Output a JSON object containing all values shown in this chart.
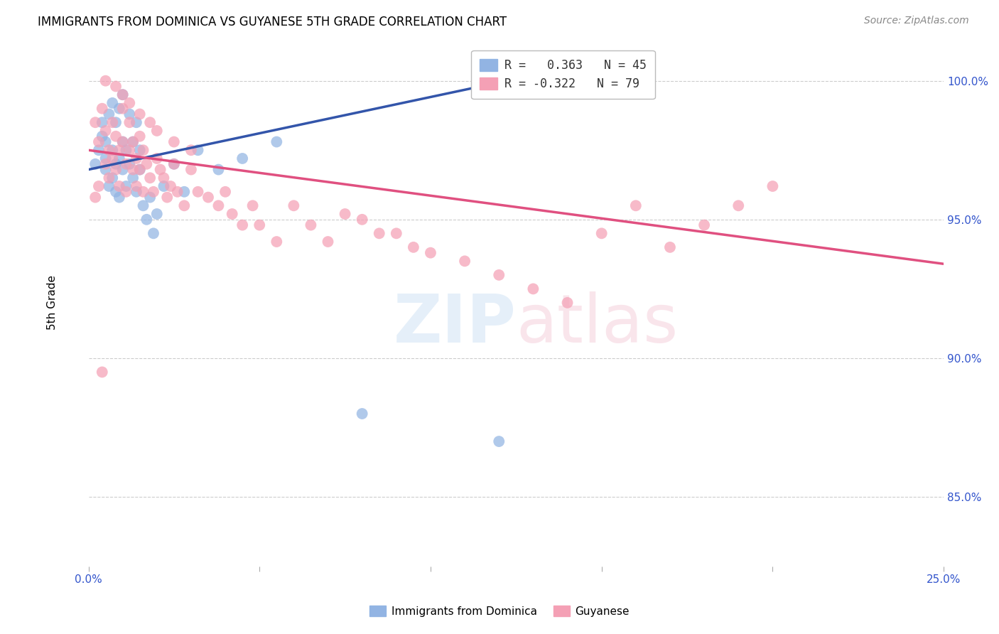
{
  "title": "IMMIGRANTS FROM DOMINICA VS GUYANESE 5TH GRADE CORRELATION CHART",
  "source": "Source: ZipAtlas.com",
  "ylabel": "5th Grade",
  "ytick_labels": [
    "85.0%",
    "90.0%",
    "95.0%",
    "100.0%"
  ],
  "ytick_values": [
    0.85,
    0.9,
    0.95,
    1.0
  ],
  "xlim": [
    0.0,
    0.25
  ],
  "ylim": [
    0.825,
    1.015
  ],
  "blue_color": "#92b4e3",
  "pink_color": "#f4a0b5",
  "blue_line_color": "#3355aa",
  "pink_line_color": "#e05080",
  "grid_color": "#cccccc",
  "blue_line_x0": 0.0,
  "blue_line_y0": 0.968,
  "blue_line_x1": 0.13,
  "blue_line_y1": 1.002,
  "pink_line_x0": 0.0,
  "pink_line_y0": 0.975,
  "pink_line_x1": 0.25,
  "pink_line_y1": 0.934,
  "blue_scatter_x": [
    0.002,
    0.003,
    0.004,
    0.004,
    0.005,
    0.005,
    0.005,
    0.006,
    0.006,
    0.007,
    0.007,
    0.007,
    0.008,
    0.008,
    0.008,
    0.009,
    0.009,
    0.009,
    0.01,
    0.01,
    0.01,
    0.011,
    0.011,
    0.012,
    0.012,
    0.013,
    0.013,
    0.014,
    0.014,
    0.015,
    0.015,
    0.016,
    0.017,
    0.018,
    0.019,
    0.02,
    0.022,
    0.025,
    0.028,
    0.032,
    0.038,
    0.045,
    0.055,
    0.08,
    0.12
  ],
  "blue_scatter_y": [
    0.97,
    0.975,
    0.98,
    0.985,
    0.968,
    0.972,
    0.978,
    0.962,
    0.988,
    0.965,
    0.975,
    0.992,
    0.96,
    0.97,
    0.985,
    0.958,
    0.972,
    0.99,
    0.968,
    0.978,
    0.995,
    0.962,
    0.975,
    0.97,
    0.988,
    0.965,
    0.978,
    0.96,
    0.985,
    0.968,
    0.975,
    0.955,
    0.95,
    0.958,
    0.945,
    0.952,
    0.962,
    0.97,
    0.96,
    0.975,
    0.968,
    0.972,
    0.978,
    0.88,
    0.87
  ],
  "pink_scatter_x": [
    0.002,
    0.003,
    0.004,
    0.005,
    0.005,
    0.006,
    0.006,
    0.007,
    0.007,
    0.008,
    0.008,
    0.009,
    0.009,
    0.01,
    0.01,
    0.011,
    0.011,
    0.012,
    0.012,
    0.013,
    0.013,
    0.014,
    0.014,
    0.015,
    0.015,
    0.016,
    0.016,
    0.017,
    0.018,
    0.019,
    0.02,
    0.021,
    0.022,
    0.023,
    0.024,
    0.025,
    0.026,
    0.028,
    0.03,
    0.032,
    0.035,
    0.038,
    0.04,
    0.042,
    0.045,
    0.048,
    0.05,
    0.055,
    0.06,
    0.065,
    0.07,
    0.075,
    0.08,
    0.085,
    0.09,
    0.095,
    0.1,
    0.11,
    0.12,
    0.13,
    0.14,
    0.15,
    0.16,
    0.17,
    0.18,
    0.19,
    0.2,
    0.005,
    0.008,
    0.01,
    0.012,
    0.015,
    0.018,
    0.02,
    0.025,
    0.03,
    0.002,
    0.003,
    0.004
  ],
  "pink_scatter_y": [
    0.985,
    0.978,
    0.99,
    0.982,
    0.97,
    0.975,
    0.965,
    0.985,
    0.972,
    0.98,
    0.968,
    0.975,
    0.962,
    0.978,
    0.99,
    0.97,
    0.96,
    0.975,
    0.985,
    0.968,
    0.978,
    0.962,
    0.972,
    0.968,
    0.98,
    0.96,
    0.975,
    0.97,
    0.965,
    0.96,
    0.972,
    0.968,
    0.965,
    0.958,
    0.962,
    0.97,
    0.96,
    0.955,
    0.968,
    0.96,
    0.958,
    0.955,
    0.96,
    0.952,
    0.948,
    0.955,
    0.948,
    0.942,
    0.955,
    0.948,
    0.942,
    0.952,
    0.95,
    0.945,
    0.945,
    0.94,
    0.938,
    0.935,
    0.93,
    0.925,
    0.92,
    0.945,
    0.955,
    0.94,
    0.948,
    0.955,
    0.962,
    1.0,
    0.998,
    0.995,
    0.992,
    0.988,
    0.985,
    0.982,
    0.978,
    0.975,
    0.958,
    0.962,
    0.895
  ]
}
